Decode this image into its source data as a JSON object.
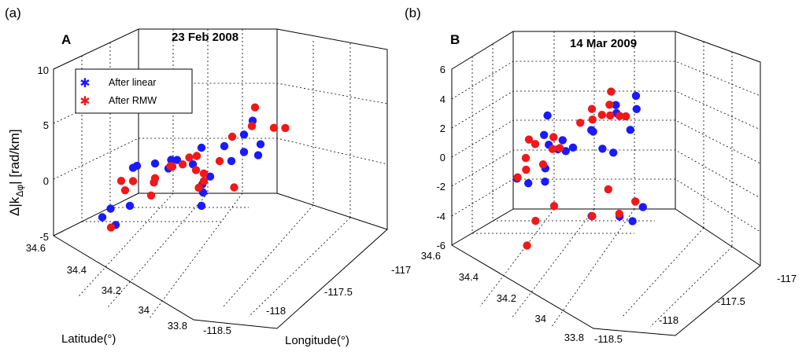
{
  "colors": {
    "linear": "#1a1aff",
    "rmw": "#f01818"
  },
  "legend": {
    "linear": "After linear",
    "rmw": "After RMW"
  },
  "chart_data": [
    {
      "type": "scatter",
      "panel_label": "(a)",
      "letter": "A",
      "title": "23 Feb 2008",
      "ylabel": "Δ|k",
      "ylabel_sub": "Δφ",
      "ylabel_tail": "| [rad/km]",
      "xlabel": "Latitude(°)",
      "zlabel": "Longitude(°)",
      "ylim": [
        -5,
        10
      ],
      "yticks": [
        "-5",
        "0",
        "5",
        "10"
      ],
      "lat_ticks": [
        "34.6",
        "34.4",
        "34.2",
        "34",
        "33.8"
      ],
      "lon_ticks": [
        "-118.5",
        "-118",
        "-117.5",
        "-117"
      ],
      "series": [
        {
          "name": "After linear",
          "values": [
            [
              0.06,
              0.53,
              -2.8
            ],
            [
              0.19,
              0.48,
              1.2
            ],
            [
              0.21,
              0.54,
              1.4
            ],
            [
              0.15,
              0.72,
              -2.4
            ],
            [
              0.28,
              0.66,
              -1.6
            ],
            [
              0.23,
              0.38,
              0.8
            ],
            [
              0.3,
              0.36,
              0.2
            ],
            [
              0.37,
              0.38,
              1.2
            ],
            [
              0.4,
              0.47,
              1.8
            ],
            [
              0.45,
              0.28,
              1.8
            ],
            [
              0.47,
              0.38,
              0.8
            ],
            [
              0.53,
              0.38,
              -1.2
            ],
            [
              0.58,
              0.44,
              -1.6
            ],
            [
              0.49,
              0.26,
              -1.2
            ],
            [
              0.55,
              0.22,
              1.6
            ],
            [
              0.63,
              0.52,
              -2.4
            ],
            [
              0.67,
              0.32,
              0.8
            ],
            [
              0.73,
              0.22,
              4.2
            ],
            [
              0.72,
              0.28,
              3.2
            ],
            [
              0.78,
              0.36,
              2.0
            ],
            [
              0.84,
              0.3,
              2.4
            ],
            [
              0.87,
              0.36,
              1.7
            ],
            [
              0.34,
              0.86,
              -2.2
            ]
          ]
        },
        {
          "name": "After RMW",
          "values": [
            [
              0.06,
              0.44,
              -0.6
            ],
            [
              0.18,
              0.5,
              -0.2
            ],
            [
              0.19,
              0.58,
              -0.6
            ],
            [
              0.26,
              0.42,
              -0.4
            ],
            [
              0.29,
              0.47,
              -0.5
            ],
            [
              0.34,
              0.56,
              -1.2
            ],
            [
              0.32,
              0.37,
              0.5
            ],
            [
              0.37,
              0.42,
              0.8
            ],
            [
              0.42,
              0.4,
              0.9
            ],
            [
              0.44,
              0.37,
              1.4
            ],
            [
              0.48,
              0.36,
              1.5
            ],
            [
              0.52,
              0.42,
              0.5
            ],
            [
              0.54,
              0.38,
              -0.1
            ],
            [
              0.57,
              0.42,
              -0.6
            ],
            [
              0.59,
              0.49,
              -0.8
            ],
            [
              0.61,
              0.34,
              0.9
            ],
            [
              0.66,
              0.3,
              3.1
            ],
            [
              0.73,
              0.2,
              5.4
            ],
            [
              0.74,
              0.24,
              3.8
            ],
            [
              0.77,
              0.43,
              -1.1
            ],
            [
              0.85,
              0.2,
              3.4
            ],
            [
              0.9,
              0.17,
              3.2
            ],
            [
              0.34,
              0.9,
              -2.2
            ]
          ]
        }
      ]
    },
    {
      "type": "scatter",
      "panel_label": "(b)",
      "letter": "B",
      "title": "14 Mar 2009",
      "ylabel": "",
      "ylim": [
        -6,
        6
      ],
      "yticks": [
        "-6",
        "-4",
        "-2",
        "0",
        "2",
        "4",
        "6"
      ],
      "lat_ticks": [
        "34.6",
        "34.4",
        "34.2",
        "34",
        "33.8"
      ],
      "lon_ticks": [
        "-118.5",
        "-118",
        "-117.5",
        "-117"
      ],
      "series": [
        {
          "name": "After linear",
          "values": [
            [
              0.08,
              0.34,
              1.2
            ],
            [
              0.11,
              0.62,
              -0.8
            ],
            [
              0.16,
              0.4,
              3.0
            ],
            [
              0.2,
              0.62,
              -1.1
            ],
            [
              0.24,
              0.48,
              1.2
            ],
            [
              0.28,
              0.4,
              1.2
            ],
            [
              0.3,
              0.58,
              -0.1
            ],
            [
              0.33,
              0.5,
              1.0
            ],
            [
              0.35,
              0.64,
              -0.8
            ],
            [
              0.41,
              0.52,
              1.0
            ],
            [
              0.45,
              0.5,
              1.2
            ],
            [
              0.49,
              0.38,
              2.0
            ],
            [
              0.54,
              0.42,
              2.1
            ],
            [
              0.58,
              0.26,
              3.4
            ],
            [
              0.62,
              0.3,
              3.0
            ],
            [
              0.64,
              0.45,
              1.0
            ],
            [
              0.7,
              0.42,
              0.6
            ],
            [
              0.74,
              0.26,
              4.2
            ],
            [
              0.78,
              0.3,
              3.4
            ],
            [
              0.8,
              0.38,
              2.2
            ],
            [
              0.58,
              0.48,
              -4.0
            ],
            [
              0.75,
              0.42,
              -4.2
            ],
            [
              0.8,
              0.36,
              -4.8
            ],
            [
              0.83,
              0.3,
              -4.0
            ]
          ]
        },
        {
          "name": "After RMW",
          "values": [
            [
              0.06,
              0.48,
              -0.8
            ],
            [
              0.1,
              0.5,
              1.6
            ],
            [
              0.15,
              0.66,
              -0.5
            ],
            [
              0.18,
              0.62,
              0.8
            ],
            [
              0.22,
              0.58,
              1.7
            ],
            [
              0.26,
              0.46,
              1.7
            ],
            [
              0.3,
              0.6,
              0.3
            ],
            [
              0.34,
              0.56,
              1.3
            ],
            [
              0.38,
              0.54,
              1.3
            ],
            [
              0.42,
              0.4,
              2.6
            ],
            [
              0.46,
              0.34,
              3.4
            ],
            [
              0.5,
              0.38,
              2.8
            ],
            [
              0.54,
              0.34,
              3.0
            ],
            [
              0.56,
              0.28,
              4.5
            ],
            [
              0.6,
              0.34,
              3.8
            ],
            [
              0.64,
              0.38,
              3.2
            ],
            [
              0.68,
              0.34,
              3.0
            ],
            [
              0.73,
              0.34,
              3.0
            ],
            [
              0.38,
              0.76,
              -3.2
            ],
            [
              0.44,
              0.66,
              -2.5
            ],
            [
              0.62,
              0.52,
              -3.8
            ],
            [
              0.66,
              0.42,
              -2.2
            ],
            [
              0.8,
              0.48,
              -3.7
            ],
            [
              0.84,
              0.38,
              -3.2
            ],
            [
              0.4,
              0.86,
              -4.6
            ]
          ]
        }
      ]
    }
  ]
}
